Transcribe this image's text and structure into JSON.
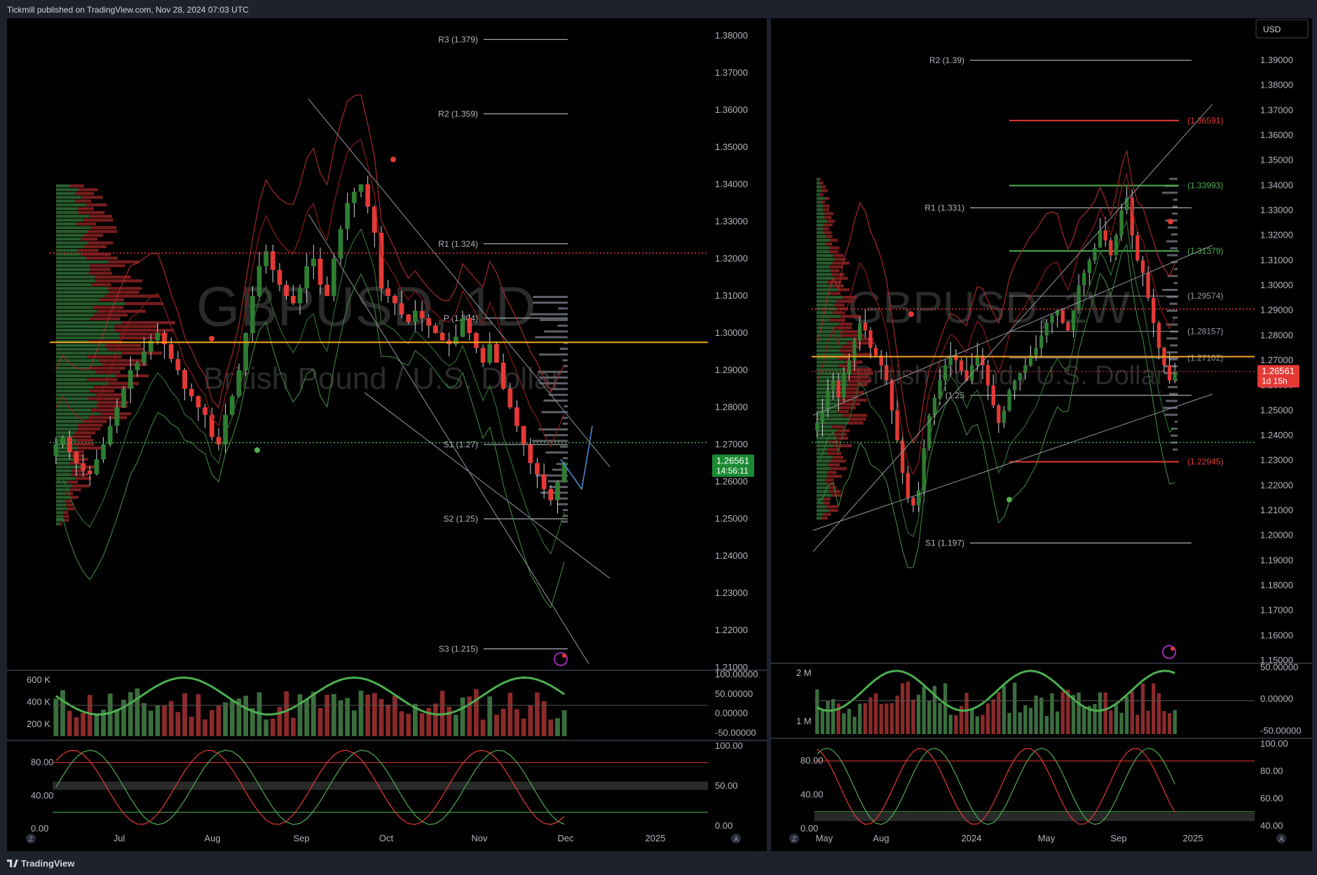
{
  "header": {
    "published": "Tickmill published on TradingView.com, Nov 28, 2024 07:03 UTC"
  },
  "footer": {
    "brand": "TradingView"
  },
  "colors": {
    "up": "#2e7d32",
    "down": "#e53935",
    "accent": "#2962ff",
    "price_tag": "#1b8a33",
    "price_tag_right": "#e53935",
    "orange": "#f5a623"
  },
  "icons": [
    "settings-z-icon",
    "auto-scale-icon",
    "lightning-icon",
    "tradingview-logo-icon"
  ],
  "chart_data": [
    {
      "type": "candlestick",
      "panel": "left",
      "watermark": {
        "symbol": "GBPUSD, 1D",
        "name": "British Pound / U.S. Dollar"
      },
      "ylim": [
        1.21,
        1.38
      ],
      "yticks": [
        "1.38000",
        "1.37000",
        "1.36000",
        "1.35000",
        "1.34000",
        "1.33000",
        "1.32000",
        "1.31000",
        "1.30000",
        "1.29000",
        "1.28000",
        "1.27000",
        "1.26000",
        "1.25000",
        "1.24000",
        "1.23000",
        "1.22000",
        "1.21000"
      ],
      "xticks": [
        "Jul",
        "Aug",
        "Sep",
        "Oct",
        "Nov",
        "Dec",
        "2025"
      ],
      "pivots": [
        {
          "label": "R3 (1.379)",
          "value": 1.379
        },
        {
          "label": "R2 (1.359)",
          "value": 1.359
        },
        {
          "label": "R1 (1.324)",
          "value": 1.324
        },
        {
          "label": "P (1.304)",
          "value": 1.304
        },
        {
          "label": "S1 (1.27)",
          "value": 1.27
        },
        {
          "label": "S2 (1.25)",
          "value": 1.25
        },
        {
          "label": "S3 (1.215)",
          "value": 1.215
        }
      ],
      "last_price": "1.26561",
      "countdown": "14:56:11",
      "close_series": [
        1.27,
        1.272,
        1.268,
        1.265,
        1.263,
        1.262,
        1.266,
        1.27,
        1.275,
        1.28,
        1.285,
        1.29,
        1.292,
        1.295,
        1.298,
        1.3,
        1.297,
        1.293,
        1.29,
        1.285,
        1.283,
        1.28,
        1.278,
        1.272,
        1.27,
        1.278,
        1.283,
        1.29,
        1.3,
        1.31,
        1.318,
        1.322,
        1.317,
        1.313,
        1.31,
        1.308,
        1.312,
        1.318,
        1.32,
        1.313,
        1.31,
        1.32,
        1.328,
        1.335,
        1.338,
        1.34,
        1.334,
        1.327,
        1.312,
        1.31,
        1.308,
        1.305,
        1.303,
        1.306,
        1.304,
        1.302,
        1.3,
        1.298,
        1.297,
        1.299,
        1.304,
        1.3,
        1.296,
        1.292,
        1.297,
        1.292,
        1.285,
        1.28,
        1.275,
        1.27,
        1.265,
        1.262,
        1.258,
        1.255,
        1.26,
        1.265
      ],
      "volume_ticks": [
        "600 K",
        "400 K",
        "200 K"
      ],
      "osc_right_ticks": [
        "100.00000",
        "50.00000",
        "0.00000",
        "-50.00000"
      ],
      "stoch_ticks": [
        "80.00",
        "40.00",
        "0.00"
      ],
      "stoch_right_ticks": [
        "100.00",
        "50.00",
        "0.00"
      ]
    },
    {
      "type": "candlestick",
      "panel": "right",
      "watermark": {
        "symbol": "GBPUSD, 1W",
        "name": "British Pound / U.S. Dollar"
      },
      "currency": "USD",
      "ylim": [
        1.15,
        1.39
      ],
      "yticks": [
        "1.39000",
        "1.38000",
        "1.37000",
        "1.36000",
        "1.35000",
        "1.34000",
        "1.33000",
        "1.32000",
        "1.31000",
        "1.30000",
        "1.29000",
        "1.28000",
        "1.27000",
        "1.26000",
        "1.25000",
        "1.24000",
        "1.23000",
        "1.22000",
        "1.21000",
        "1.20000",
        "1.19000",
        "1.18000",
        "1.17000",
        "1.16000",
        "1.15000"
      ],
      "xticks": [
        "May",
        "Aug",
        "2024",
        "May",
        "Sep",
        "2025"
      ],
      "pivots": [
        {
          "label": "R2 (1.39)",
          "value": 1.39
        },
        {
          "label": "R1 (1.331)",
          "value": 1.331
        },
        {
          "label": "P (1.25",
          "value": 1.256
        },
        {
          "label": "S1 (1.197)",
          "value": 1.197
        }
      ],
      "levels": [
        {
          "label": "(1.36591)",
          "value": 1.36591,
          "color": "red"
        },
        {
          "label": "(1.33993)",
          "value": 1.33993,
          "color": "green"
        },
        {
          "label": "(1.31379)",
          "value": 1.31379,
          "color": "green"
        },
        {
          "label": "(1.29574)",
          "value": 1.29574,
          "color": "white"
        },
        {
          "label": "(1.28157)",
          "value": 1.28157,
          "color": "white"
        },
        {
          "label": "(1.27102)",
          "value": 1.27102,
          "color": "white"
        },
        {
          "label": "(1.22945)",
          "value": 1.22945,
          "color": "red"
        }
      ],
      "last_price": "1.26561",
      "countdown": "1d 15h",
      "close_series": [
        1.245,
        1.25,
        1.258,
        1.262,
        1.255,
        1.265,
        1.27,
        1.278,
        1.285,
        1.282,
        1.275,
        1.272,
        1.268,
        1.262,
        1.25,
        1.238,
        1.225,
        1.215,
        1.212,
        1.218,
        1.235,
        1.248,
        1.255,
        1.262,
        1.268,
        1.272,
        1.27,
        1.266,
        1.262,
        1.268,
        1.272,
        1.268,
        1.26,
        1.252,
        1.245,
        1.25,
        1.258,
        1.262,
        1.265,
        1.268,
        1.272,
        1.275,
        1.28,
        1.285,
        1.288,
        1.29,
        1.285,
        1.282,
        1.29,
        1.3,
        1.305,
        1.31,
        1.315,
        1.322,
        1.318,
        1.312,
        1.32,
        1.33,
        1.335,
        1.32,
        1.31,
        1.305,
        1.295,
        1.285,
        1.275,
        1.268,
        1.262,
        1.265
      ],
      "volume_ticks": [
        "2 M",
        "1 M"
      ],
      "osc_right_ticks": [
        "50.00000",
        "0.00000",
        "-50.00000"
      ],
      "stoch_ticks": [
        "80.00",
        "40.00",
        "0.00"
      ],
      "stoch_right_ticks": [
        "100.00",
        "80.00",
        "60.00",
        "40.00"
      ]
    }
  ]
}
